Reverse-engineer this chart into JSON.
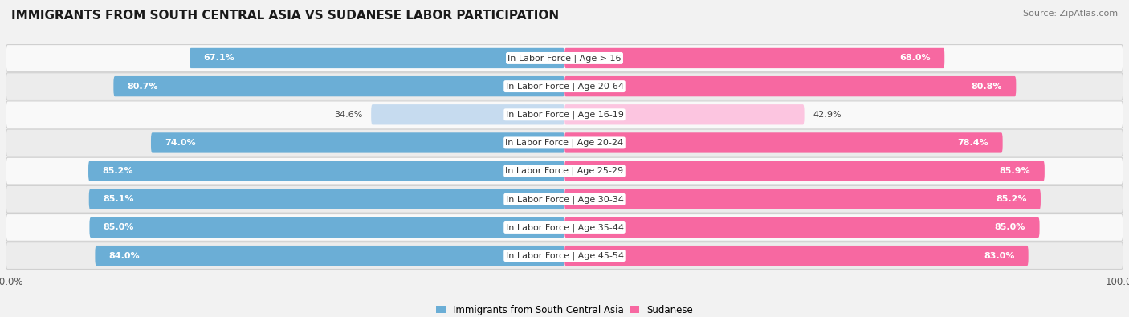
{
  "title": "IMMIGRANTS FROM SOUTH CENTRAL ASIA VS SUDANESE LABOR PARTICIPATION",
  "source": "Source: ZipAtlas.com",
  "categories": [
    "In Labor Force | Age > 16",
    "In Labor Force | Age 20-64",
    "In Labor Force | Age 16-19",
    "In Labor Force | Age 20-24",
    "In Labor Force | Age 25-29",
    "In Labor Force | Age 30-34",
    "In Labor Force | Age 35-44",
    "In Labor Force | Age 45-54"
  ],
  "left_values": [
    67.1,
    80.7,
    34.6,
    74.0,
    85.2,
    85.1,
    85.0,
    84.0
  ],
  "right_values": [
    68.0,
    80.8,
    42.9,
    78.4,
    85.9,
    85.2,
    85.0,
    83.0
  ],
  "left_labels": [
    "67.1%",
    "80.7%",
    "34.6%",
    "74.0%",
    "85.2%",
    "85.1%",
    "85.0%",
    "84.0%"
  ],
  "right_labels": [
    "68.0%",
    "80.8%",
    "42.9%",
    "78.4%",
    "85.9%",
    "85.2%",
    "85.0%",
    "83.0%"
  ],
  "left_color_full": "#6baed6",
  "left_color_light": "#c6dbef",
  "right_color_full": "#f768a1",
  "right_color_light": "#fcc5e0",
  "max_value": 100.0,
  "bar_height": 0.72,
  "background_color": "#f2f2f2",
  "row_bg_odd": "#f9f9f9",
  "row_bg_even": "#ececec",
  "legend_label_left": "Immigrants from South Central Asia",
  "legend_label_right": "Sudanese",
  "title_fontsize": 11,
  "source_fontsize": 8,
  "axis_label_fontsize": 8.5,
  "bar_label_fontsize": 8,
  "category_fontsize": 8,
  "low_threshold": 50
}
